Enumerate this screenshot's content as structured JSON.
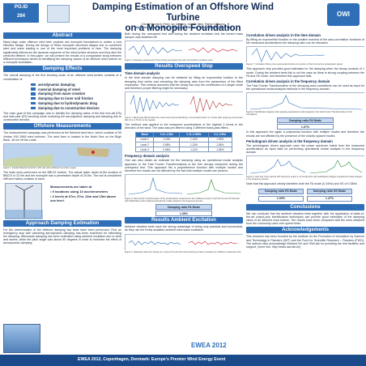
{
  "header": {
    "badge_line1": "PO.ID",
    "badge_line2": "284",
    "title_line1": "Damping Estimation of an Offshore Wind Turbine",
    "title_line2": "on a Monopile Foundation",
    "authors": "Christof Devriendt, Pieter Jan Jordaens, Gert De Sitter, Patrick Guillaume",
    "affiliation": "Vrije Universiteit Brussel – Belgium – Offshore Wind Infrastructure Lab",
    "right_logo": "OWI"
  },
  "abstract": {
    "heading": "Abstract",
    "text": "Many large scale offshore wind farm projects use monopile foundations to realize a cost effective design. During the design of these monopile structures fatigue due to combined wind and wave loading is one of the most important problems to face. The damping significantly influences the dynamic response of the wind turbine structure and thus also the predicted lifetime. In this paper, we will present the results of a comparative study between different techniques aimed at identifying the damping values of an offshore wind turbine on a monopile foundation."
  },
  "damping_effects": {
    "heading": "Damping Effects",
    "intro": "The overall damping of the first bending mode of an offshore wind turbine consists of a combination of:",
    "items": [
      "aerodynamic damping",
      "material damping of steel",
      "damping from wave creation",
      "damping due to inner soil friction",
      "damping due to hydrodynamic drag",
      "damping due to constructive devices"
    ],
    "outro": "The main goal of this campaign was to identify the damping ratios of the first fore-aft (FA) and side-side (SS) bending mode excluding the aerodynamic damping and damping due to constructive devices."
  },
  "offshore_measurements": {
    "heading": "Offshore Measurements",
    "text1": "The measurement campaign was performed at the Belwind wind farm, which consists of 55 Vestas V90 3MW wind turbines. The wind farm is located in the North Sea on the Bligh Bank, 46 km off the coast.",
    "fig_caption": "Figure 1. location Belwind wind farm with pole above Belwind wind farm region.",
    "text2": "The tests were performed on the BBC01 turbine. The actual water depth at the location of BBC01 is 22.9m and the monopile has a penetration depth of 20.6m. The soil is considered stiff and mainly consists of sand.",
    "list_title": "Measurements are taken at",
    "list": [
      "• 9 locations using 10 accelerometers",
      "• 4 levels at 67m, 37m, 23m and 15m above sea level."
    ],
    "photo_caption": "Figure 2. Belwind wind farm photo"
  },
  "approach": {
    "heading": "Approach Damping Estimation",
    "text": "For the determination of the offshore damping two tests have been performed. First an emergency stop with vanishing aerodynamic damping has been examined for estimating the damping. Afterwards damping has been estimated using ambient excitation due to wind and waves, while the pitch angle was above 80 degrees in order to minimize the effect of aerodynamic damping."
  },
  "col2_intro": {
    "text": "Both during the overspeed test and during the ambient excitation test the turned mass damper was switched off.",
    "caption": "Figure 3. Example measurement Time during overspeed stop with and ambient excitation case."
  },
  "time_domain": {
    "heading": "Results Overspeed Stop",
    "subheading": "Time domain analysis",
    "text": "In the time domain damping can be obtained by fitting an exponential function to the decaying time series and extracting the damping ratio from the parameters of the fitted expression. This method assumes that the decay has only the contribution of a single mode and therefore proper filtering might be necessary.",
    "caption": "Figure 4. Band-pass filtered data time series and exponential fitting on FA accelerometer on 3 levels after applying a band-pass filter (0.1–0.75 Hz) to the signals.",
    "text2": "The method was applied to the measured accelerations of the highest 3 levels in the direction of the wind. The data was pre-filtered using 3 different band-pass filters."
  },
  "table": {
    "headers": [
      "Band",
      "0.11–1.5Hz",
      "0.11–0.55Hz",
      "0.2–0.5Hz"
    ],
    "rows": [
      [
        "Level 1",
        "1.13%",
        "1.14%",
        "1.09%"
      ],
      [
        "Level 2",
        "0.98%",
        "1.13%",
        "1.05%"
      ],
      [
        "Level 3",
        "0.96%",
        "1.11%",
        "1.05%"
      ]
    ]
  },
  "freq_domain": {
    "subheading": "Frequency domain analysis",
    "text": "One can also obtain an estimate for the damping using an operational modal analysis approach to the Fast Fourier Transformations of the free decays measured during the overspeed test. This approach fits a polyreference function with multiple modes and therefore the results are not affected by the fact that multiple modes are present.",
    "caption": "Figure 5. Fast Fourier Transformation of the accelerations measured on the 3 different levels in both the FA and SS direction with Stabilization chart obtained operational modal analysis in the frequency domain.",
    "pill_label": "Damping ratio FA Mode",
    "pill_value": "1.05%"
  },
  "ambient_intro": {
    "heading": "Results Ambient Excitation",
    "text": "Ambient vibration tests have the strong advantage of being very practical and economical, as they use the freely available ambient wind wave excitation.",
    "caption": "Figure 6. Stationary data from during an 1 stops of FA and SS channel during ambient excitation at 2 different rotational of FA."
  },
  "col3": {
    "heading1": "Correlation driven analysis in the time domain",
    "text1": "By fitting an exponential function to the positive maxima of the auto-correlation functions of the measured accelerations the damping ratio can be extracted.",
    "cap1": "Figure 7. Correlation fitting of an exponential function of a portion of the FA structure acceleration signal.",
    "text2": "This approach only provides good estimates for the damping when the decay consists of 1 mode. During the ambient tests this is not the case as there is strong coupling between the FA and SS mode, and therefore this approach fails.",
    "heading2": "Correlation driven analysis in the frequency domain",
    "text3": "The Fast Fourier Transformation of the decaying auto-correlations can be used as input for the operational modal analysis methods in the frequency domain.",
    "cap2": "Figure 8. Stabilization diagram after applying operational modal analysis to the Fast Fourier Transformations of the correlations.",
    "pill1_label": "Damping ratio FA Mode",
    "pill1_value": "1.07%",
    "text4": "In this approach the again a polynomial function with multiple modes and therefore the results are not affected by the presence of the closely spaced modes.",
    "heading3": "Periodogram driven analysis in the frequency domain",
    "text5": "The periodogram driven approach uses the power spectrum matrix from the measured accelerations as input data for performing operational modal analysis in the frequency domain.",
    "cap3": "Figure 9. auto and cross spectra with reference output 1 on FA direction with stabilization diagram operational modal analysis in the frequency domain.",
    "text6": "Note that this approach clearly identifies both the FA mode (0.34Hz) and SS of 0.38Hz.",
    "pill2_label": "Damping ratio FA Mode",
    "pill2_value": "1.09%",
    "pill3_label": "Damping ratio SS Mode",
    "pill3_value": "1.47%",
    "conclusions_heading": "Conclusions",
    "conclusions": "We can conclude that the ambient vibration tests together with the application of state-of-the-art output-only identification techniques can provide good estimates of the damping ratios of an offshore wind turbine. The results have been compared with the ones obtained from the commonly used over-speed tests.",
    "ack_heading": "Acknowledgements",
    "ack": "This research has been founded by the Institute for the Promotion of Innovation by Science and Technology in Flanders (IWT) and the Fund for Scientific Research – Flanders (FWO). The authors also acknowledge Belwind NV and OWI-lab for providing the test facilities and support. (more info: http://www.owi-lab.be)"
  },
  "footer": {
    "text": "EWEA 2012, Copenhagen, Denmark: Europe's Premier Wind Energy Event",
    "logo": "EWEA 2012"
  },
  "colors": {
    "primary": "#2f6fb8",
    "dark": "#1a4a8a"
  }
}
